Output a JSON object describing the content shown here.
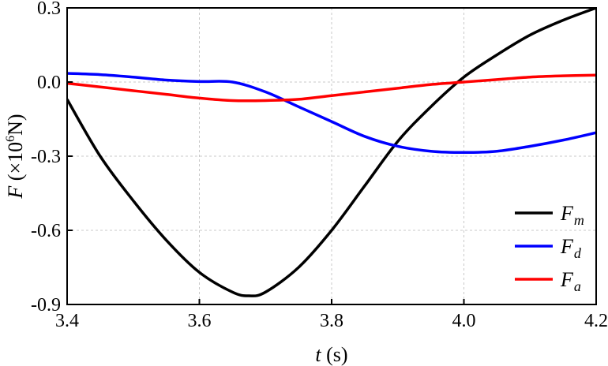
{
  "chart_data": {
    "type": "line",
    "xlabel": {
      "var": "t",
      "unit": " (s)"
    },
    "ylabel": {
      "var": "F",
      "pre": " (×10",
      "exp": "6",
      "post": "N)"
    },
    "xlim": [
      3.4,
      4.2
    ],
    "ylim": [
      -0.9,
      0.3
    ],
    "xticks": [
      "3.4",
      "3.6",
      "3.8",
      "4.0",
      "4.2"
    ],
    "yticks": [
      "-0.9",
      "-0.6",
      "-0.3",
      "0.0",
      "0.3"
    ],
    "grid": true,
    "legend_position": "bottom-right",
    "series": [
      {
        "name": "Fm",
        "base": "F",
        "sub": "m",
        "color": "#000000",
        "x": [
          3.4,
          3.45,
          3.5,
          3.55,
          3.6,
          3.65,
          3.675,
          3.7,
          3.75,
          3.8,
          3.85,
          3.9,
          3.95,
          4.0,
          4.05,
          4.1,
          4.15,
          4.2
        ],
        "y": [
          -0.07,
          -0.3,
          -0.48,
          -0.64,
          -0.77,
          -0.85,
          -0.865,
          -0.85,
          -0.75,
          -0.6,
          -0.42,
          -0.24,
          -0.1,
          0.02,
          0.11,
          0.19,
          0.25,
          0.3
        ]
      },
      {
        "name": "Fd",
        "base": "F",
        "sub": "d",
        "color": "#0000ff",
        "x": [
          3.4,
          3.45,
          3.5,
          3.55,
          3.6,
          3.65,
          3.7,
          3.75,
          3.8,
          3.85,
          3.9,
          3.95,
          4.0,
          4.05,
          4.1,
          4.15,
          4.2
        ],
        "y": [
          0.035,
          0.03,
          0.02,
          0.008,
          0.002,
          0.0,
          -0.04,
          -0.1,
          -0.16,
          -0.22,
          -0.26,
          -0.28,
          -0.285,
          -0.28,
          -0.26,
          -0.235,
          -0.205
        ]
      },
      {
        "name": "Fa",
        "base": "F",
        "sub": "a",
        "color": "#ff0000",
        "x": [
          3.4,
          3.45,
          3.5,
          3.55,
          3.6,
          3.65,
          3.7,
          3.75,
          3.8,
          3.85,
          3.9,
          3.95,
          4.0,
          4.05,
          4.1,
          4.15,
          4.2
        ],
        "y": [
          -0.005,
          -0.02,
          -0.035,
          -0.05,
          -0.065,
          -0.075,
          -0.075,
          -0.07,
          -0.055,
          -0.04,
          -0.025,
          -0.01,
          0.0,
          0.01,
          0.02,
          0.025,
          0.028
        ]
      }
    ]
  }
}
